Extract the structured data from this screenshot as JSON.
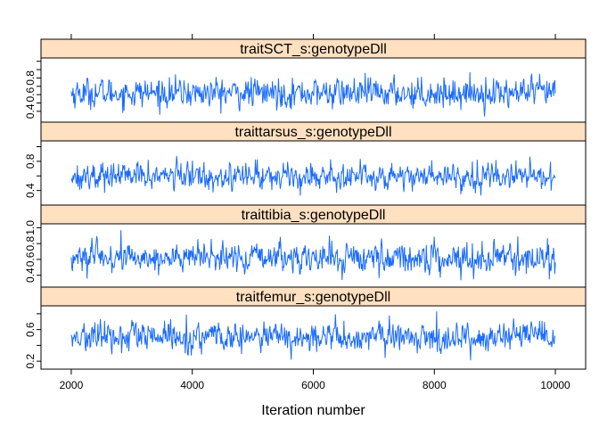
{
  "chart_data": {
    "type": "line",
    "title": "",
    "xlabel": "Iteration number",
    "ylabel": "",
    "xlim": [
      1500,
      10500
    ],
    "x_ticks": [
      2000,
      4000,
      6000,
      8000,
      10000
    ],
    "x_tick_labels": [
      "2000",
      "4000",
      "6000",
      "8000",
      "10000"
    ],
    "x_range": [
      2000,
      10000
    ],
    "samples_per_series": 800,
    "panels": [
      {
        "strip": "traitSCT_s:genotypeDll",
        "ylim": [
          0.27,
          1.04
        ],
        "y_ticks": [
          0.4,
          0.5,
          0.6,
          0.7,
          0.8,
          0.9,
          1.0
        ],
        "y_tick_labels": [
          "0.4",
          "",
          "0.6",
          "",
          "0.8",
          "",
          ""
        ],
        "mean": 0.62,
        "sd": 0.085,
        "min": 0.33,
        "max": 0.93
      },
      {
        "strip": "traittarsus_s:genotypeDll",
        "ylim": [
          0.2,
          1.08
        ],
        "y_ticks": [
          0.4,
          0.6,
          0.8,
          1.0
        ],
        "y_tick_labels": [
          "0.4",
          "",
          "0.8",
          ""
        ],
        "mean": 0.6,
        "sd": 0.09,
        "min": 0.3,
        "max": 1.0
      },
      {
        "strip": "traittibia_s:genotypeDll",
        "ylim": [
          0.25,
          1.05
        ],
        "y_ticks": [
          0.4,
          0.6,
          0.8,
          1.0
        ],
        "y_tick_labels": [
          "0.4",
          "0.6",
          "0.8",
          "1.0"
        ],
        "mean": 0.62,
        "sd": 0.09,
        "min": 0.32,
        "max": 0.98
      },
      {
        "strip": "traitfemur_s:genotypeDll",
        "ylim": [
          0.1,
          0.9
        ],
        "y_ticks": [
          0.2,
          0.4,
          0.6,
          0.8
        ],
        "y_tick_labels": [
          "0.2",
          "",
          "0.6",
          ""
        ],
        "mean": 0.5,
        "sd": 0.09,
        "min": 0.17,
        "max": 0.86
      }
    ]
  },
  "colors": {
    "line": "#1a6bff",
    "strip_fill": "#ffe0c0",
    "frame": "#000000",
    "background": "#ffffff"
  }
}
